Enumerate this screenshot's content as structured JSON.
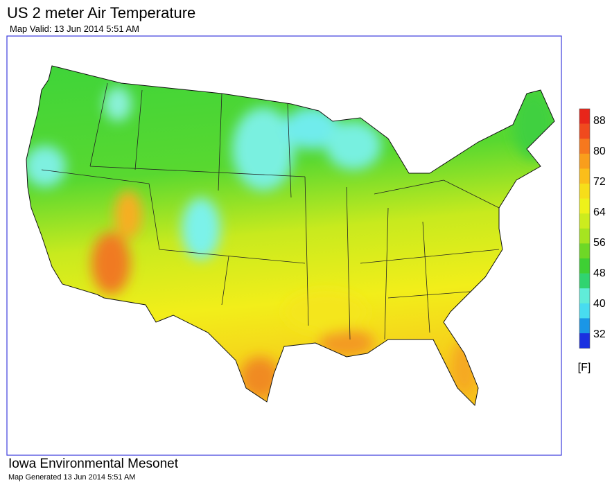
{
  "header": {
    "title": "US 2 meter Air Temperature",
    "subtitle": "Map Valid: 13 Jun 2014 5:51 AM"
  },
  "legend": {
    "ticks": [
      88,
      80,
      72,
      64,
      56,
      48,
      40,
      32
    ],
    "unit": "[F]"
  },
  "footer": {
    "title": "Iowa Environmental Mesonet",
    "subtitle": "Map Generated 13 Jun 2014 5:51 AM"
  }
}
